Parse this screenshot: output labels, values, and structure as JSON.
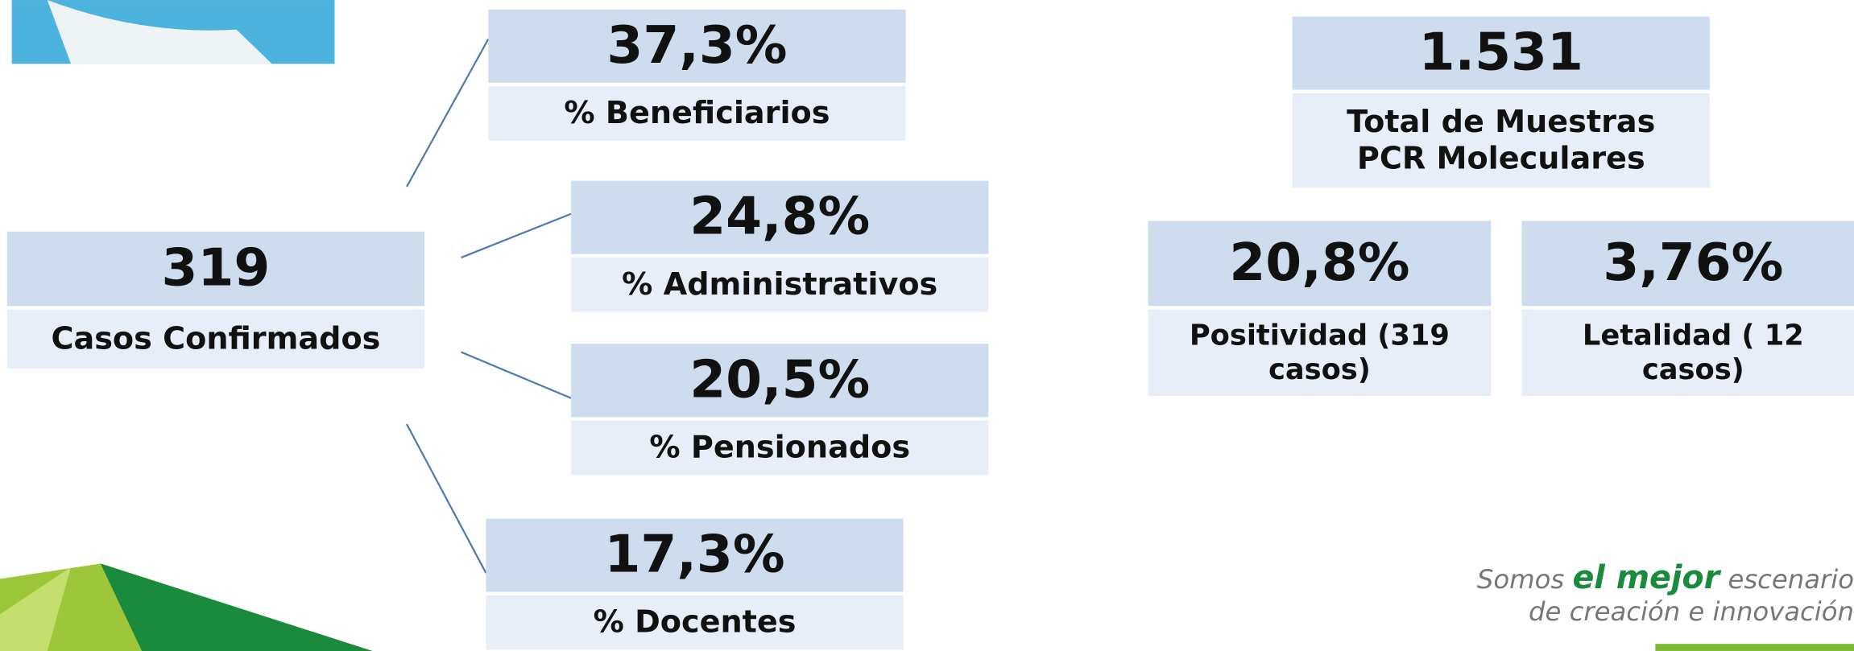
{
  "summary": {
    "value": "319",
    "label": [
      "Casos Confirmados"
    ]
  },
  "breakdown": [
    {
      "value": "37,3%",
      "label": [
        "% Beneficiarios"
      ]
    },
    {
      "value": "24,8%",
      "label": [
        "% Administrativos"
      ]
    },
    {
      "value": "20,5%",
      "label": [
        "% Pensionados"
      ]
    },
    {
      "value": "17,3%",
      "label": [
        "% Docentes"
      ]
    }
  ],
  "tests": {
    "value": "1.531",
    "label": [
      "Total de Muestras",
      "PCR Moleculares"
    ]
  },
  "rates": [
    {
      "value": "20,8%",
      "label": [
        "Positividad (319",
        "casos)"
      ]
    },
    {
      "value": "3,76%",
      "label": [
        "Letalidad ( 12",
        "casos)"
      ]
    }
  ],
  "slogan": {
    "prefix": "Somos",
    "emphasis": "el mejor",
    "rest": "escenario",
    "line2": "de creación e innovación"
  }
}
